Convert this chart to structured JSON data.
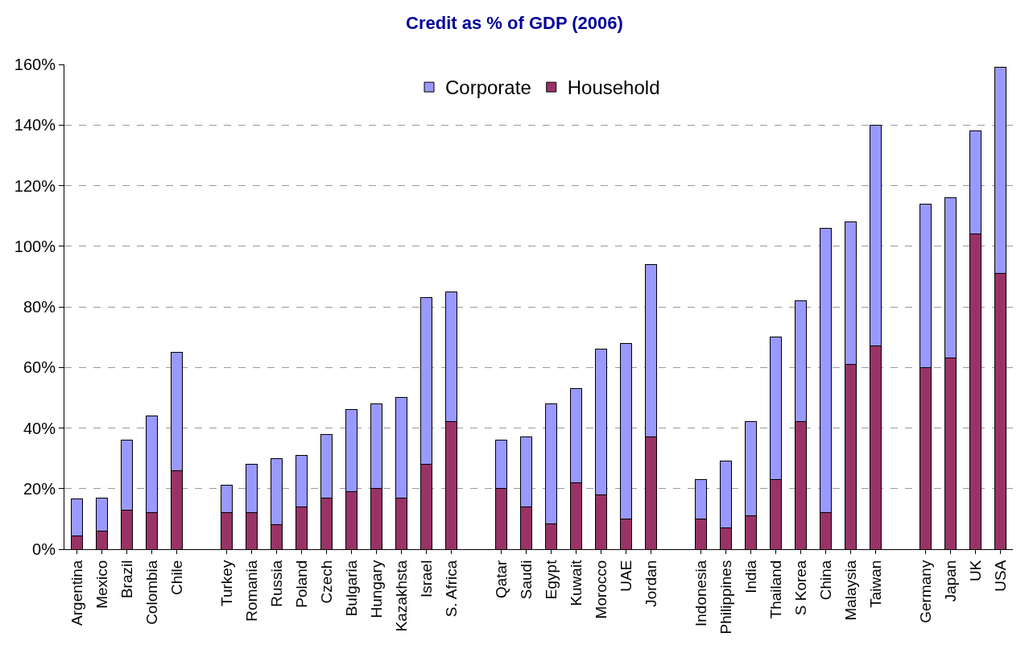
{
  "chart_data": {
    "type": "bar",
    "title": "Credit as % of GDP (2006)",
    "stacked": true,
    "categories": [
      "Argentina",
      "Mexico",
      "Brazil",
      "Colombia",
      "Chile",
      null,
      "Turkey",
      "Romania",
      "Russia",
      "Poland",
      "Czech",
      "Bulgaria",
      "Hungary",
      "Kazakhsta",
      "Israel",
      "S. Africa",
      null,
      "Qatar",
      "Saudi",
      "Egypt",
      "Kuwait",
      "Morocco",
      "UAE",
      "Jordan",
      null,
      "Indonesia",
      "Philippines",
      "India",
      "Thailand",
      "S Korea",
      "China",
      "Malaysia",
      "Taiwan",
      null,
      "Germany",
      "Japan",
      "UK",
      "USA"
    ],
    "series": [
      {
        "name": "Household",
        "color": "#993366",
        "values": [
          4.5,
          6,
          13,
          12,
          26,
          null,
          12,
          12,
          8,
          14,
          17,
          19,
          20,
          17,
          28,
          42,
          null,
          20,
          14,
          8.5,
          22,
          18,
          10,
          37,
          null,
          10,
          7,
          11,
          23,
          42,
          12,
          61,
          67,
          null,
          60,
          63,
          104,
          91
        ]
      },
      {
        "name": "Corporate",
        "color": "#9999ff",
        "values": [
          12,
          11,
          23,
          32,
          39,
          null,
          9,
          16,
          22,
          17,
          21,
          27,
          28,
          33,
          55,
          43,
          null,
          16,
          23,
          39.5,
          31,
          48,
          58,
          57,
          null,
          13,
          22,
          31,
          47,
          40,
          94,
          47,
          73,
          null,
          54,
          53,
          34,
          68
        ]
      }
    ],
    "ylim": [
      0,
      160
    ],
    "yticks": [
      {
        "value": 0,
        "label": "0%"
      },
      {
        "value": 20,
        "label": "20%"
      },
      {
        "value": 40,
        "label": "40%"
      },
      {
        "value": 60,
        "label": "60%"
      },
      {
        "value": 80,
        "label": "80%"
      },
      {
        "value": 100,
        "label": "100%"
      },
      {
        "value": 120,
        "label": "120%"
      },
      {
        "value": 140,
        "label": "140%"
      },
      {
        "value": 160,
        "label": "160%"
      }
    ],
    "grid": "y",
    "legend": "top"
  }
}
